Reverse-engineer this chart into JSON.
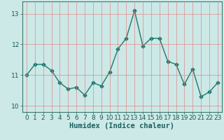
{
  "x": [
    0,
    1,
    2,
    3,
    4,
    5,
    6,
    7,
    8,
    9,
    10,
    11,
    12,
    13,
    14,
    15,
    16,
    17,
    18,
    19,
    20,
    21,
    22,
    23
  ],
  "y": [
    11.0,
    11.35,
    11.35,
    11.15,
    10.75,
    10.55,
    10.6,
    10.35,
    10.75,
    10.65,
    11.1,
    11.85,
    12.2,
    13.1,
    11.95,
    12.2,
    12.2,
    11.45,
    11.35,
    10.7,
    11.2,
    10.3,
    10.45,
    10.75
  ],
  "line_color": "#1a7a6e",
  "marker": "D",
  "marker_size": 2.5,
  "linewidth": 1.0,
  "xlabel": "Humidex (Indice chaleur)",
  "background_color": "#cce9e7",
  "grid_color": "#e08080",
  "ylim": [
    9.8,
    13.4
  ],
  "xlim": [
    -0.5,
    23.5
  ],
  "yticks": [
    10,
    11,
    12,
    13
  ],
  "xticks": [
    0,
    1,
    2,
    3,
    4,
    5,
    6,
    7,
    8,
    9,
    10,
    11,
    12,
    13,
    14,
    15,
    16,
    17,
    18,
    19,
    20,
    21,
    22,
    23
  ],
  "xlabel_fontsize": 7.5,
  "tick_fontsize": 6.5
}
